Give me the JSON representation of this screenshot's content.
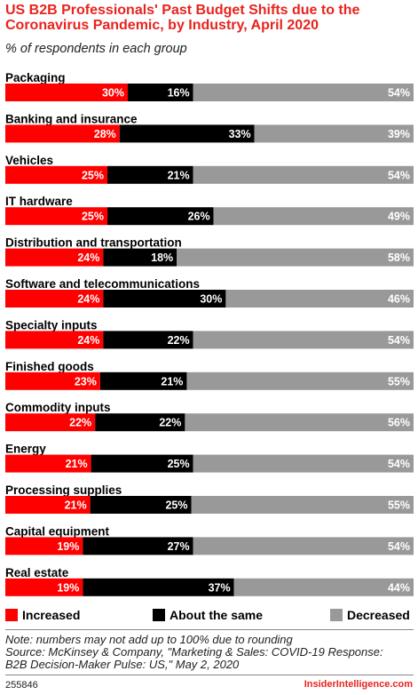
{
  "header": {
    "title": "US B2B Professionals' Past Budget Shifts due to the Coronavirus Pandemic, by Industry, April 2020",
    "subtitle": "% of respondents in each group"
  },
  "colors": {
    "increased": "#ff0000",
    "same": "#000000",
    "decreased": "#999999",
    "label": "#ffffff"
  },
  "legend": [
    {
      "name": "Increased",
      "color": "#ff0000"
    },
    {
      "name": "About the same",
      "color": "#000000"
    },
    {
      "name": "Decreased",
      "color": "#999999"
    }
  ],
  "footer": {
    "note": "Note: numbers may not add up to 100% due to rounding",
    "source_line1": "Source: McKinsey & Company, \"Marketing & Sales: COVID-19 Response:",
    "source_line2": "B2B Decision-Maker Pulse: US,\" May 2, 2020",
    "chart_id": "255846",
    "brand": "InsiderIntelligence.com"
  },
  "chart_data": {
    "type": "bar",
    "stacked": true,
    "orientation": "horizontal",
    "categories": [
      "Packaging",
      "Banking and insurance",
      "Vehicles",
      "IT hardware",
      "Distribution and transportation",
      "Software and telecommunications",
      "Specialty inputs",
      "Finished goods",
      "Commodity inputs",
      "Energy",
      "Processing supplies",
      "Capital equipment",
      "Real estate"
    ],
    "series": [
      {
        "name": "Increased",
        "values": [
          30,
          28,
          25,
          25,
          24,
          24,
          24,
          23,
          22,
          21,
          21,
          19,
          19
        ]
      },
      {
        "name": "About the same",
        "values": [
          16,
          33,
          21,
          26,
          18,
          30,
          22,
          21,
          22,
          25,
          25,
          27,
          37
        ]
      },
      {
        "name": "Decreased",
        "values": [
          54,
          39,
          54,
          49,
          58,
          46,
          54,
          55,
          56,
          54,
          55,
          54,
          44
        ]
      }
    ],
    "value_suffix": "%",
    "legend_position": "bottom",
    "grid": false
  }
}
